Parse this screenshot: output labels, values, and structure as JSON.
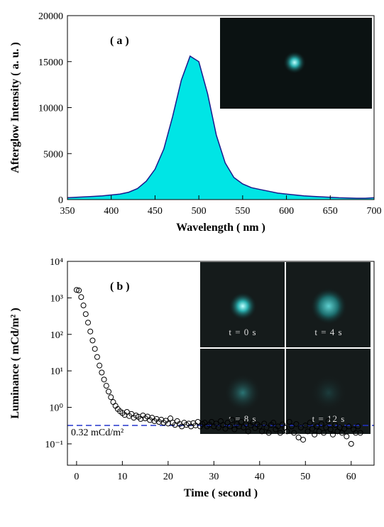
{
  "chart_data": [
    {
      "type": "area",
      "panel_label": "( a )",
      "x_label": "Wavelength ( nm )",
      "y_label": "Afterglow Intensity ( a. u. )",
      "color": "#00e5e5",
      "line_color": "#1a1a8c",
      "x": [
        350,
        360,
        370,
        380,
        390,
        400,
        410,
        420,
        430,
        440,
        450,
        460,
        470,
        480,
        490,
        500,
        510,
        520,
        530,
        540,
        550,
        560,
        570,
        580,
        590,
        600,
        610,
        620,
        630,
        640,
        650,
        660,
        670,
        680,
        690,
        700
      ],
      "values": [
        200,
        250,
        300,
        350,
        400,
        500,
        600,
        800,
        1200,
        2000,
        3300,
        5500,
        9000,
        13000,
        15600,
        15000,
        11500,
        7000,
        4000,
        2400,
        1700,
        1300,
        1100,
        900,
        700,
        600,
        500,
        400,
        350,
        300,
        250,
        200,
        180,
        150,
        150,
        200
      ],
      "xlim": [
        350,
        700
      ],
      "xticks": [
        350,
        400,
        450,
        500,
        550,
        600,
        650,
        700
      ],
      "ylim": [
        0,
        20000
      ],
      "yticks": [
        0,
        5000,
        10000,
        15000,
        20000
      ]
    },
    {
      "type": "scatter",
      "log_y": true,
      "panel_label": "( b )",
      "x_label": "Time ( second )",
      "y_label": "Luminance ( mCd/m² )",
      "color": "#000000",
      "x": [
        0,
        0.5,
        1,
        1.5,
        2,
        2.5,
        3,
        3.5,
        4,
        4.5,
        5,
        5.5,
        6,
        6.5,
        7,
        7.5,
        8,
        8.5,
        9,
        9.5,
        10,
        10.5,
        11,
        11.5,
        12,
        12.5,
        13,
        13.5,
        14,
        14.5,
        15,
        15.5,
        16,
        16.5,
        17,
        17.5,
        18,
        18.5,
        19,
        19.5,
        20,
        20.5,
        21,
        21.5,
        22,
        22.5,
        23,
        23.5,
        24,
        24.5,
        25,
        25.5,
        26,
        26.5,
        27,
        27.5,
        28,
        28.5,
        29,
        29.5,
        30,
        30.5,
        31,
        31.5,
        32,
        32.5,
        33,
        33.5,
        34,
        34.5,
        35,
        35.5,
        36,
        36.5,
        37,
        37.5,
        38,
        38.5,
        39,
        39.5,
        40,
        40.5,
        41,
        41.5,
        42,
        42.5,
        43,
        43.5,
        44,
        44.5,
        45,
        45.5,
        46,
        46.5,
        47,
        47.5,
        48,
        48.5,
        49,
        49.5,
        50,
        50.5,
        51,
        51.5,
        52,
        52.5,
        53,
        53.5,
        54,
        54.5,
        55,
        55.5,
        56,
        56.5,
        57,
        57.5,
        58,
        58.5,
        59,
        59.5,
        60,
        60.5,
        61,
        61.5,
        62
      ],
      "values": [
        1650,
        1600,
        1050,
        620,
        360,
        210,
        120,
        68,
        40,
        24,
        14,
        9,
        5.8,
        3.9,
        2.7,
        1.9,
        1.4,
        1.1,
        0.9,
        0.78,
        0.7,
        0.62,
        0.75,
        0.58,
        0.66,
        0.52,
        0.6,
        0.55,
        0.48,
        0.6,
        0.5,
        0.56,
        0.45,
        0.52,
        0.42,
        0.48,
        0.4,
        0.46,
        0.38,
        0.43,
        0.36,
        0.5,
        0.38,
        0.33,
        0.42,
        0.35,
        0.3,
        0.38,
        0.33,
        0.36,
        0.3,
        0.37,
        0.32,
        0.4,
        0.3,
        0.35,
        0.38,
        0.3,
        0.34,
        0.4,
        0.3,
        0.36,
        0.28,
        0.42,
        0.33,
        0.26,
        0.38,
        0.3,
        0.45,
        0.25,
        0.35,
        0.3,
        0.4,
        0.28,
        0.35,
        0.22,
        0.32,
        0.38,
        0.27,
        0.34,
        0.3,
        0.22,
        0.36,
        0.28,
        0.2,
        0.33,
        0.38,
        0.25,
        0.3,
        0.2,
        0.34,
        0.28,
        0.22,
        0.4,
        0.3,
        0.2,
        0.35,
        0.15,
        0.28,
        0.13,
        0.32,
        0.22,
        0.38,
        0.26,
        0.18,
        0.3,
        0.22,
        0.35,
        0.2,
        0.28,
        0.42,
        0.25,
        0.18,
        0.33,
        0.22,
        0.28,
        0.2,
        0.26,
        0.16,
        0.3,
        0.1,
        0.25,
        0.2,
        0.3,
        0.2
      ],
      "xlim": [
        -2,
        65
      ],
      "xticks": [
        0,
        10,
        20,
        30,
        40,
        50,
        60
      ],
      "ylim": [
        0.026,
        10000
      ],
      "yticks": [
        {
          "value": 0.1,
          "label": "10⁻¹"
        },
        {
          "value": 1,
          "label": "10⁰"
        },
        {
          "value": 10,
          "label": "10¹"
        },
        {
          "value": 100,
          "label": "10²"
        },
        {
          "value": 1000,
          "label": "10³"
        },
        {
          "value": 10000,
          "label": "10⁴"
        }
      ],
      "reference_line": {
        "value": 0.32,
        "label": "0.32 mCd/m²",
        "color": "#2233cc"
      },
      "insets": [
        "t = 0 s",
        "t = 4 s",
        "t = 8 s",
        "t = 12 s"
      ]
    }
  ]
}
